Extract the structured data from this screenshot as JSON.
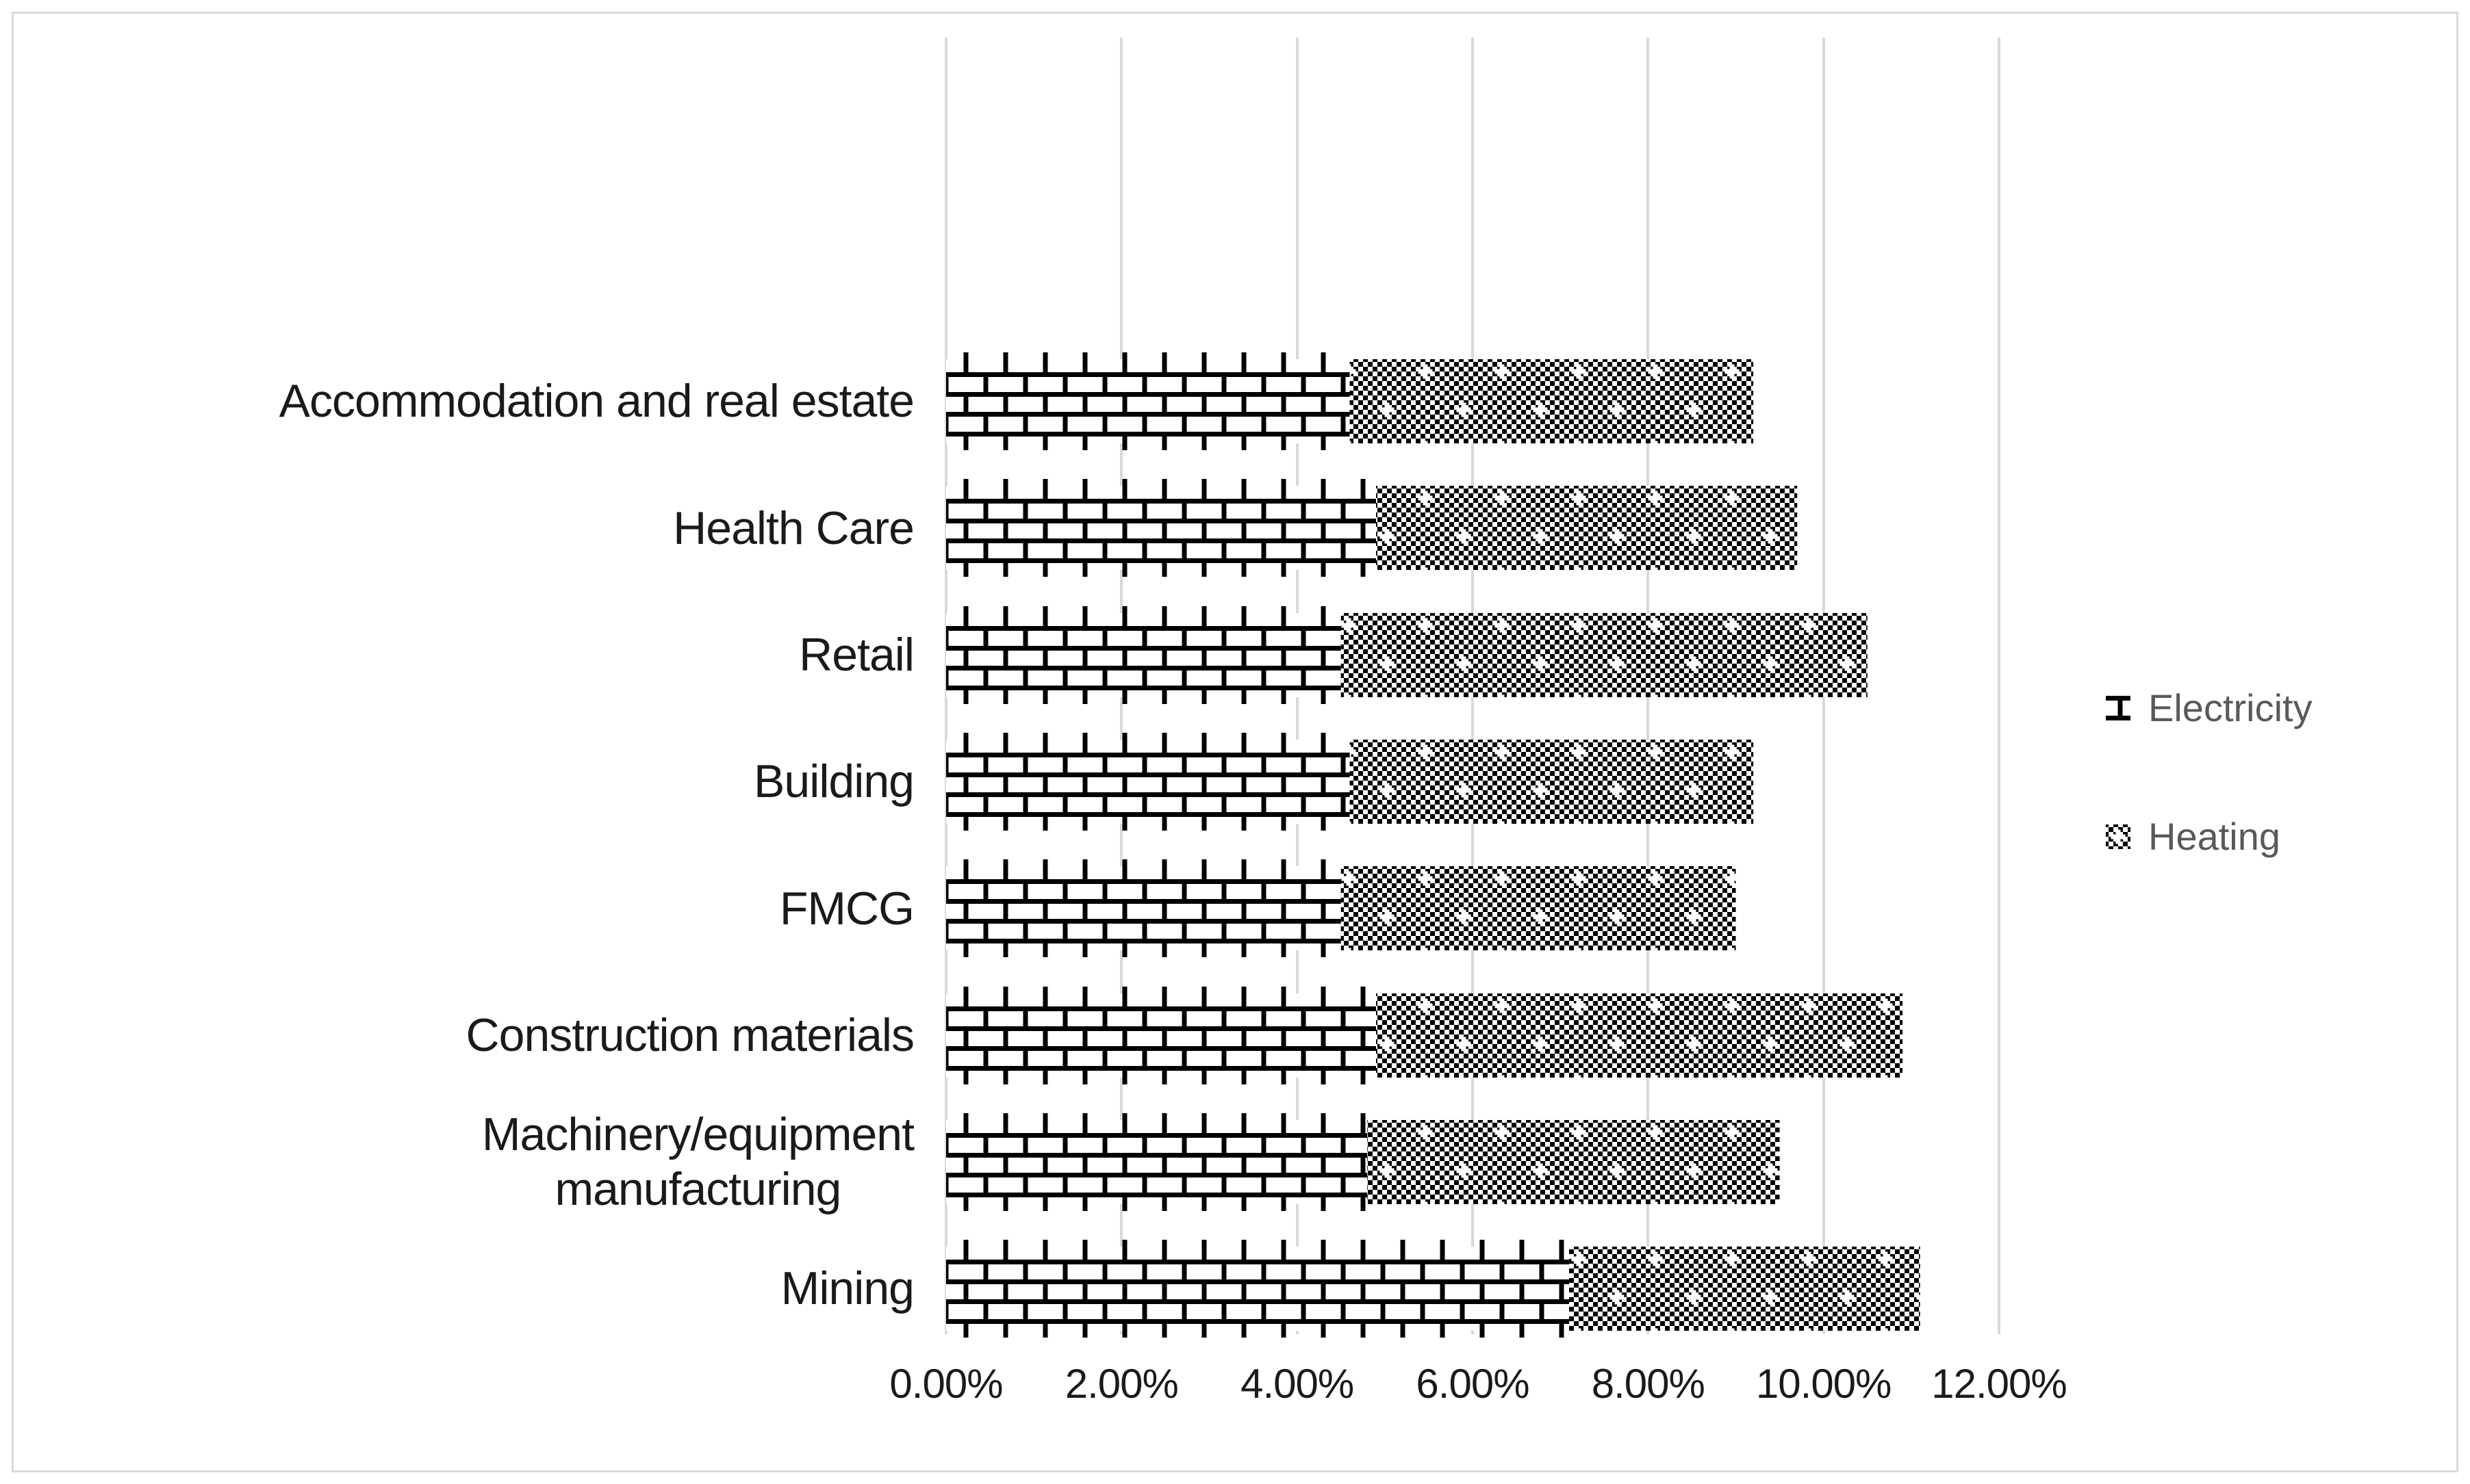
{
  "chart_data": {
    "type": "bar",
    "orientation": "horizontal-stacked",
    "title": "",
    "categories": [
      "Accommodation and real estate",
      "Health Care",
      "Retail",
      "Building",
      "FMCG",
      "Construction materials",
      "Machinery/equipment\nmanufacturing",
      "Mining"
    ],
    "series": [
      {
        "name": "Electricity",
        "pattern": "brick",
        "values": [
          4.6,
          4.9,
          4.5,
          4.6,
          4.5,
          4.9,
          4.8,
          7.1
        ]
      },
      {
        "name": "Heating",
        "pattern": "checker",
        "values": [
          4.6,
          4.8,
          6.0,
          4.6,
          4.5,
          6.0,
          4.7,
          4.0
        ]
      }
    ],
    "totals": [
      9.2,
      9.7,
      10.5,
      9.2,
      9.0,
      10.9,
      9.5,
      11.1
    ],
    "x_tick_labels": [
      "0.00%",
      "2.00%",
      "4.00%",
      "6.00%",
      "8.00%",
      "10.00%",
      "12.00%"
    ],
    "xlim": [
      0,
      12
    ],
    "grid": "vertical",
    "legend_position": "right",
    "colors": {
      "pattern_foreground": "#000000",
      "background": "#ffffff",
      "gridline": "#d9d9d9",
      "axis_text": "#1a1a1a",
      "legend_text": "#595959",
      "border": "#d9d9d9"
    }
  },
  "legend": {
    "items": [
      {
        "label": "Electricity"
      },
      {
        "label": "Heating"
      }
    ]
  }
}
